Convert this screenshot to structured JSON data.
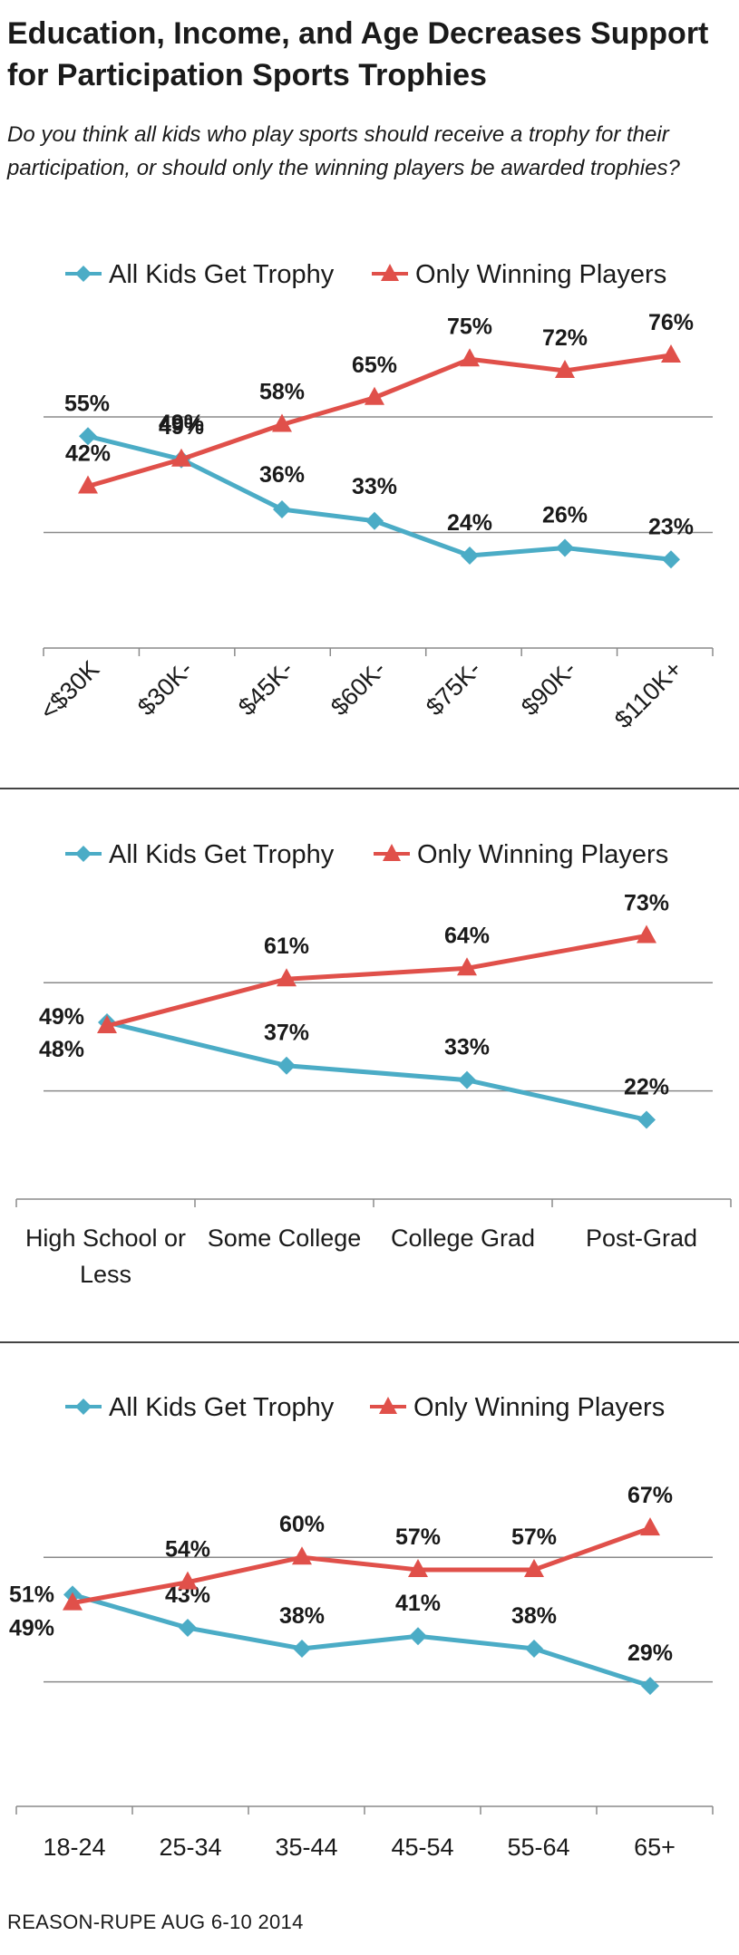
{
  "header": {
    "title": "Education, Income, and Age Decreases Support for Participation Sports Trophies",
    "subtitle": "Do you think all kids who play sports should receive a trophy for their participation, or should only the winning players be awarded trophies?"
  },
  "source": "REASON-RUPE AUG 6-10 2014",
  "colors": {
    "all_kids": "#4bacc6",
    "winning": "#e0504a",
    "grid": "#8a8a8a"
  },
  "chart_data": [
    {
      "type": "line",
      "grid": true,
      "legend": "top",
      "categories": [
        "<$30K",
        "$30K-",
        "$45K-",
        "$60K-",
        "$75K-",
        "$90K-",
        "$110K+"
      ],
      "series": [
        {
          "name": "All Kids Get Trophy",
          "values": [
            55,
            49,
            36,
            33,
            24,
            26,
            23
          ]
        },
        {
          "name": "Only Winning Players",
          "values": [
            42,
            49,
            58,
            65,
            75,
            72,
            76
          ]
        }
      ]
    },
    {
      "type": "line",
      "grid": true,
      "legend": "top",
      "categories": [
        "High School or Less",
        "Some College",
        "College Grad",
        "Post-Grad"
      ],
      "series": [
        {
          "name": "All Kids Get Trophy",
          "values": [
            49,
            37,
            33,
            22
          ]
        },
        {
          "name": "Only Winning Players",
          "values": [
            48,
            61,
            64,
            73
          ]
        }
      ]
    },
    {
      "type": "line",
      "grid": true,
      "legend": "top",
      "categories": [
        "18-24",
        "25-34",
        "35-44",
        "45-54",
        "55-64",
        "65+"
      ],
      "series": [
        {
          "name": "All Kids Get Trophy",
          "values": [
            51,
            43,
            38,
            41,
            38,
            29
          ]
        },
        {
          "name": "Only Winning Players",
          "values": [
            49,
            54,
            60,
            57,
            57,
            67
          ]
        }
      ]
    }
  ]
}
